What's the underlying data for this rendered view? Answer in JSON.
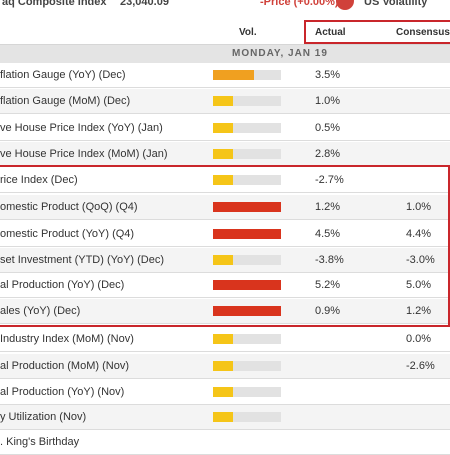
{
  "ticker": {
    "index_name": "aq Composite Index",
    "index_value": "23,040.09",
    "change": "-Price (+0.00%)",
    "volatility": "US Volatility"
  },
  "header": {
    "vol": "Vol.",
    "actual": "Actual",
    "consensus": "Consensus"
  },
  "date_label": "MONDAY, JAN 19",
  "colors": {
    "high": "#d9341d",
    "medium": "#f0a020",
    "low": "#f5c518",
    "highlight": "#c9262b"
  },
  "rows": [
    {
      "name": "flation Gauge (YoY) (Dec)",
      "vol": "medium",
      "vol_fill": 0.6,
      "actual": "3.5%",
      "consensus": ""
    },
    {
      "name": "flation Gauge (MoM) (Dec)",
      "vol": "low",
      "vol_fill": 0.3,
      "actual": "1.0%",
      "consensus": ""
    },
    {
      "name": "ve House Price Index (YoY) (Jan)",
      "vol": "low",
      "vol_fill": 0.3,
      "actual": "0.5%",
      "consensus": ""
    },
    {
      "name": "ve House Price Index (MoM) (Jan)",
      "vol": "low",
      "vol_fill": 0.3,
      "actual": "2.8%",
      "consensus": ""
    },
    {
      "name": "rice Index (Dec)",
      "vol": "low",
      "vol_fill": 0.3,
      "actual": "-2.7%",
      "consensus": ""
    },
    {
      "name": "omestic Product (QoQ) (Q4)",
      "vol": "high",
      "vol_fill": 1.0,
      "actual": "1.2%",
      "consensus": "1.0%"
    },
    {
      "name": "omestic Product (YoY) (Q4)",
      "vol": "high",
      "vol_fill": 1.0,
      "actual": "4.5%",
      "consensus": "4.4%"
    },
    {
      "name": "set Investment (YTD) (YoY) (Dec)",
      "vol": "low",
      "vol_fill": 0.3,
      "actual": "-3.8%",
      "consensus": "-3.0%"
    },
    {
      "name": "al Production (YoY) (Dec)",
      "vol": "high",
      "vol_fill": 1.0,
      "actual": "5.2%",
      "consensus": "5.0%"
    },
    {
      "name": "ales (YoY) (Dec)",
      "vol": "high",
      "vol_fill": 1.0,
      "actual": "0.9%",
      "consensus": "1.2%"
    },
    {
      "name": "Industry Index (MoM) (Nov)",
      "vol": "low",
      "vol_fill": 0.3,
      "actual": "",
      "consensus": "0.0%"
    },
    {
      "name": "al Production (MoM) (Nov)",
      "vol": "low",
      "vol_fill": 0.3,
      "actual": "",
      "consensus": "-2.6%"
    },
    {
      "name": "al Production (YoY) (Nov)",
      "vol": "low",
      "vol_fill": 0.3,
      "actual": "",
      "consensus": ""
    },
    {
      "name": "y Utilization (Nov)",
      "vol": "low",
      "vol_fill": 0.3,
      "actual": "",
      "consensus": ""
    },
    {
      "name": ". King's Birthday",
      "vol": "",
      "vol_fill": 0,
      "actual": "",
      "consensus": ""
    }
  ]
}
